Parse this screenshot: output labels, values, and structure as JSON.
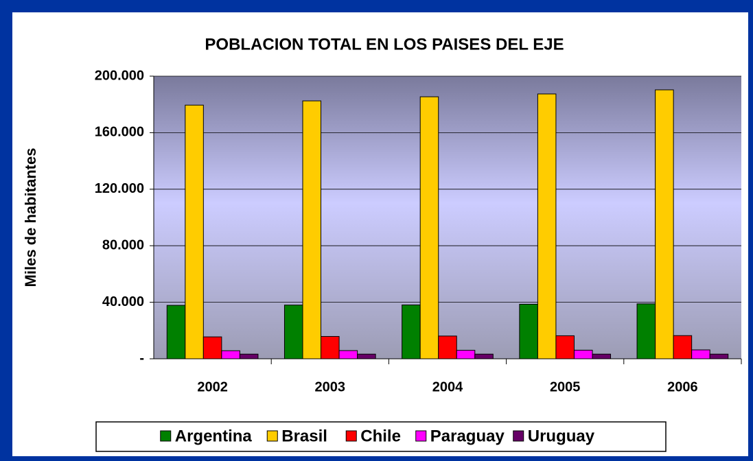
{
  "chart_data": {
    "type": "bar",
    "title": "POBLACION TOTAL EN LOS PAISES DEL EJE",
    "y_label": "Miles de habitantes",
    "categories": [
      "2002",
      "2003",
      "2004",
      "2005",
      "2006"
    ],
    "series": [
      {
        "name": "Argentina",
        "color": "#008000",
        "values": [
          37800,
          38000,
          38100,
          38600,
          38900
        ]
      },
      {
        "name": "Brasil",
        "color": "#ffcc00",
        "values": [
          179500,
          182500,
          185400,
          187400,
          190300
        ]
      },
      {
        "name": "Chile",
        "color": "#ff0000",
        "values": [
          15500,
          15800,
          16100,
          16300,
          16400
        ]
      },
      {
        "name": "Paraguay",
        "color": "#ff00ff",
        "values": [
          5700,
          5800,
          6000,
          6100,
          6300
        ]
      },
      {
        "name": "Uruguay",
        "color": "#660066",
        "values": [
          3300,
          3300,
          3300,
          3300,
          3300
        ]
      }
    ],
    "ylim": [
      0,
      200000
    ],
    "yticks": [
      {
        "value": 0,
        "label": "-"
      },
      {
        "value": 40000,
        "label": "40.000"
      },
      {
        "value": 80000,
        "label": "80.000"
      },
      {
        "value": 120000,
        "label": "120.000"
      },
      {
        "value": 160000,
        "label": "160.000"
      },
      {
        "value": 200000,
        "label": "200.000"
      }
    ],
    "grid": true,
    "legend": "bottom"
  }
}
